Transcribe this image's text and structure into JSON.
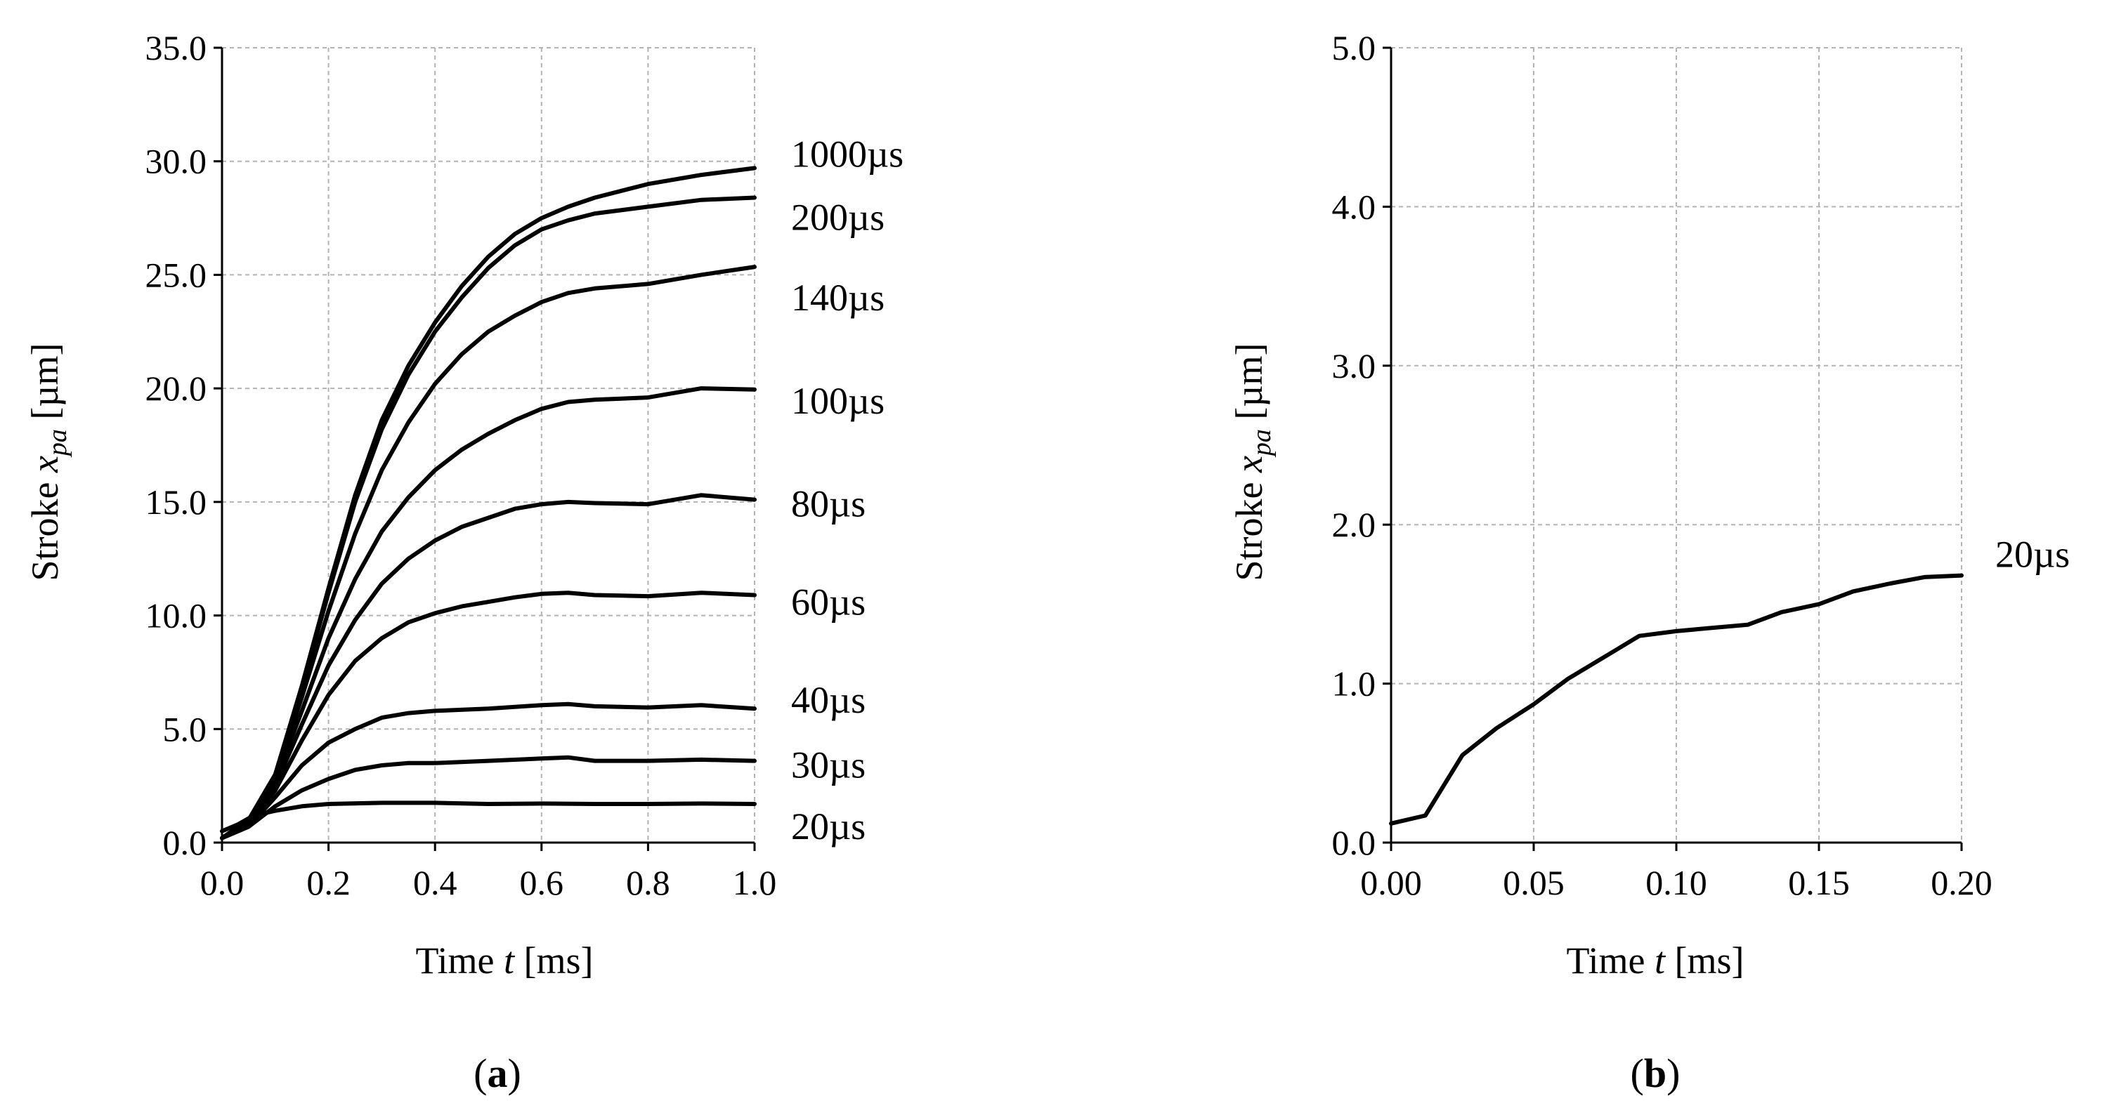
{
  "chart_data": [
    {
      "type": "line",
      "panel_label": "a",
      "xlabel_prefix": "Time ",
      "xlabel_var": "t",
      "xlabel_unit": " [ms]",
      "ylabel_prefix": "Stroke ",
      "ylabel_var": "x",
      "ylabel_sub": "pa",
      "ylabel_unit": " [µm]",
      "xlim": [
        0,
        1.0
      ],
      "ylim": [
        0,
        35.0
      ],
      "xticks": [
        "0.0",
        "0.2",
        "0.4",
        "0.6",
        "0.8",
        "1.0"
      ],
      "yticks": [
        "0.0",
        "5.0",
        "10.0",
        "15.0",
        "20.0",
        "25.0",
        "30.0",
        "35.0"
      ],
      "grid": true,
      "series": [
        {
          "name": "20µs",
          "x": [
            0,
            0.03,
            0.06,
            0.1,
            0.15,
            0.2,
            0.3,
            0.4,
            0.5,
            0.6,
            0.7,
            0.8,
            0.9,
            1.0
          ],
          "y": [
            0.5,
            0.8,
            1.2,
            1.4,
            1.6,
            1.7,
            1.75,
            1.75,
            1.7,
            1.72,
            1.7,
            1.7,
            1.72,
            1.7
          ]
        },
        {
          "name": "30µs",
          "x": [
            0,
            0.05,
            0.1,
            0.15,
            0.2,
            0.25,
            0.3,
            0.35,
            0.4,
            0.5,
            0.6,
            0.65,
            0.7,
            0.8,
            0.9,
            1.0
          ],
          "y": [
            0.2,
            0.7,
            1.6,
            2.3,
            2.8,
            3.2,
            3.4,
            3.5,
            3.5,
            3.6,
            3.7,
            3.75,
            3.6,
            3.6,
            3.65,
            3.6
          ]
        },
        {
          "name": "40µs",
          "x": [
            0,
            0.05,
            0.1,
            0.15,
            0.2,
            0.25,
            0.3,
            0.35,
            0.4,
            0.5,
            0.6,
            0.65,
            0.7,
            0.8,
            0.9,
            1.0
          ],
          "y": [
            0.2,
            0.7,
            2.0,
            3.4,
            4.4,
            5.0,
            5.5,
            5.7,
            5.8,
            5.9,
            6.05,
            6.1,
            6.0,
            5.95,
            6.05,
            5.9
          ]
        },
        {
          "name": "60µs",
          "x": [
            0,
            0.05,
            0.1,
            0.15,
            0.2,
            0.25,
            0.3,
            0.35,
            0.4,
            0.45,
            0.5,
            0.55,
            0.6,
            0.65,
            0.7,
            0.8,
            0.9,
            1.0
          ],
          "y": [
            0.2,
            0.8,
            2.3,
            4.5,
            6.5,
            8.0,
            9.0,
            9.7,
            10.1,
            10.4,
            10.6,
            10.8,
            10.95,
            11.0,
            10.9,
            10.85,
            11.0,
            10.9
          ]
        },
        {
          "name": "80µs",
          "x": [
            0,
            0.05,
            0.1,
            0.15,
            0.2,
            0.25,
            0.3,
            0.35,
            0.4,
            0.45,
            0.5,
            0.55,
            0.6,
            0.65,
            0.7,
            0.8,
            0.9,
            1.0
          ],
          "y": [
            0.2,
            0.8,
            2.5,
            5.2,
            7.8,
            9.8,
            11.4,
            12.5,
            13.3,
            13.9,
            14.3,
            14.7,
            14.9,
            15.0,
            14.95,
            14.9,
            15.3,
            15.1
          ]
        },
        {
          "name": "100µs",
          "x": [
            0,
            0.05,
            0.1,
            0.15,
            0.2,
            0.25,
            0.3,
            0.35,
            0.4,
            0.45,
            0.5,
            0.55,
            0.6,
            0.65,
            0.7,
            0.8,
            0.9,
            1.0
          ],
          "y": [
            0.2,
            0.9,
            2.7,
            5.8,
            9.0,
            11.6,
            13.7,
            15.2,
            16.4,
            17.3,
            18.0,
            18.6,
            19.1,
            19.4,
            19.5,
            19.6,
            20.0,
            19.95
          ]
        },
        {
          "name": "140µs",
          "x": [
            0,
            0.05,
            0.1,
            0.15,
            0.2,
            0.25,
            0.3,
            0.35,
            0.4,
            0.45,
            0.5,
            0.55,
            0.6,
            0.65,
            0.7,
            0.8,
            0.9,
            1.0
          ],
          "y": [
            0.2,
            0.9,
            2.9,
            6.4,
            10.2,
            13.6,
            16.4,
            18.5,
            20.2,
            21.5,
            22.5,
            23.2,
            23.8,
            24.2,
            24.4,
            24.6,
            25.0,
            25.35
          ]
        },
        {
          "name": "200µs",
          "x": [
            0,
            0.05,
            0.1,
            0.15,
            0.2,
            0.25,
            0.3,
            0.35,
            0.4,
            0.45,
            0.5,
            0.55,
            0.6,
            0.65,
            0.7,
            0.8,
            0.9,
            1.0
          ],
          "y": [
            0.2,
            1.0,
            3.0,
            6.8,
            11.0,
            15.0,
            18.2,
            20.6,
            22.5,
            24.0,
            25.3,
            26.3,
            27.0,
            27.4,
            27.7,
            28.0,
            28.3,
            28.4
          ]
        },
        {
          "name": "1000µs",
          "x": [
            0,
            0.05,
            0.1,
            0.15,
            0.2,
            0.25,
            0.3,
            0.35,
            0.4,
            0.45,
            0.5,
            0.55,
            0.6,
            0.65,
            0.7,
            0.8,
            0.9,
            1.0
          ],
          "y": [
            0.2,
            1.0,
            3.0,
            6.9,
            11.2,
            15.3,
            18.6,
            21.0,
            22.9,
            24.5,
            25.8,
            26.8,
            27.5,
            28.0,
            28.4,
            29.0,
            29.4,
            29.7
          ]
        }
      ]
    },
    {
      "type": "line",
      "panel_label": "b",
      "xlabel_prefix": "Time ",
      "xlabel_var": "t",
      "xlabel_unit": " [ms]",
      "ylabel_prefix": "Stroke ",
      "ylabel_var": "x",
      "ylabel_sub": "pa",
      "ylabel_unit": " [µm]",
      "xlim": [
        0,
        0.2
      ],
      "ylim": [
        0,
        5.0
      ],
      "xticks": [
        "0.00",
        "0.05",
        "0.10",
        "0.15",
        "0.20"
      ],
      "yticks": [
        "0.0",
        "1.0",
        "2.0",
        "3.0",
        "4.0",
        "5.0"
      ],
      "grid": true,
      "series": [
        {
          "name": "20µs",
          "x": [
            0,
            0.012,
            0.025,
            0.037,
            0.05,
            0.062,
            0.075,
            0.087,
            0.1,
            0.112,
            0.125,
            0.137,
            0.15,
            0.162,
            0.175,
            0.187,
            0.2
          ],
          "y": [
            0.12,
            0.17,
            0.55,
            0.72,
            0.87,
            1.03,
            1.17,
            1.3,
            1.33,
            1.35,
            1.37,
            1.45,
            1.5,
            1.58,
            1.63,
            1.67,
            1.68
          ]
        }
      ]
    }
  ]
}
